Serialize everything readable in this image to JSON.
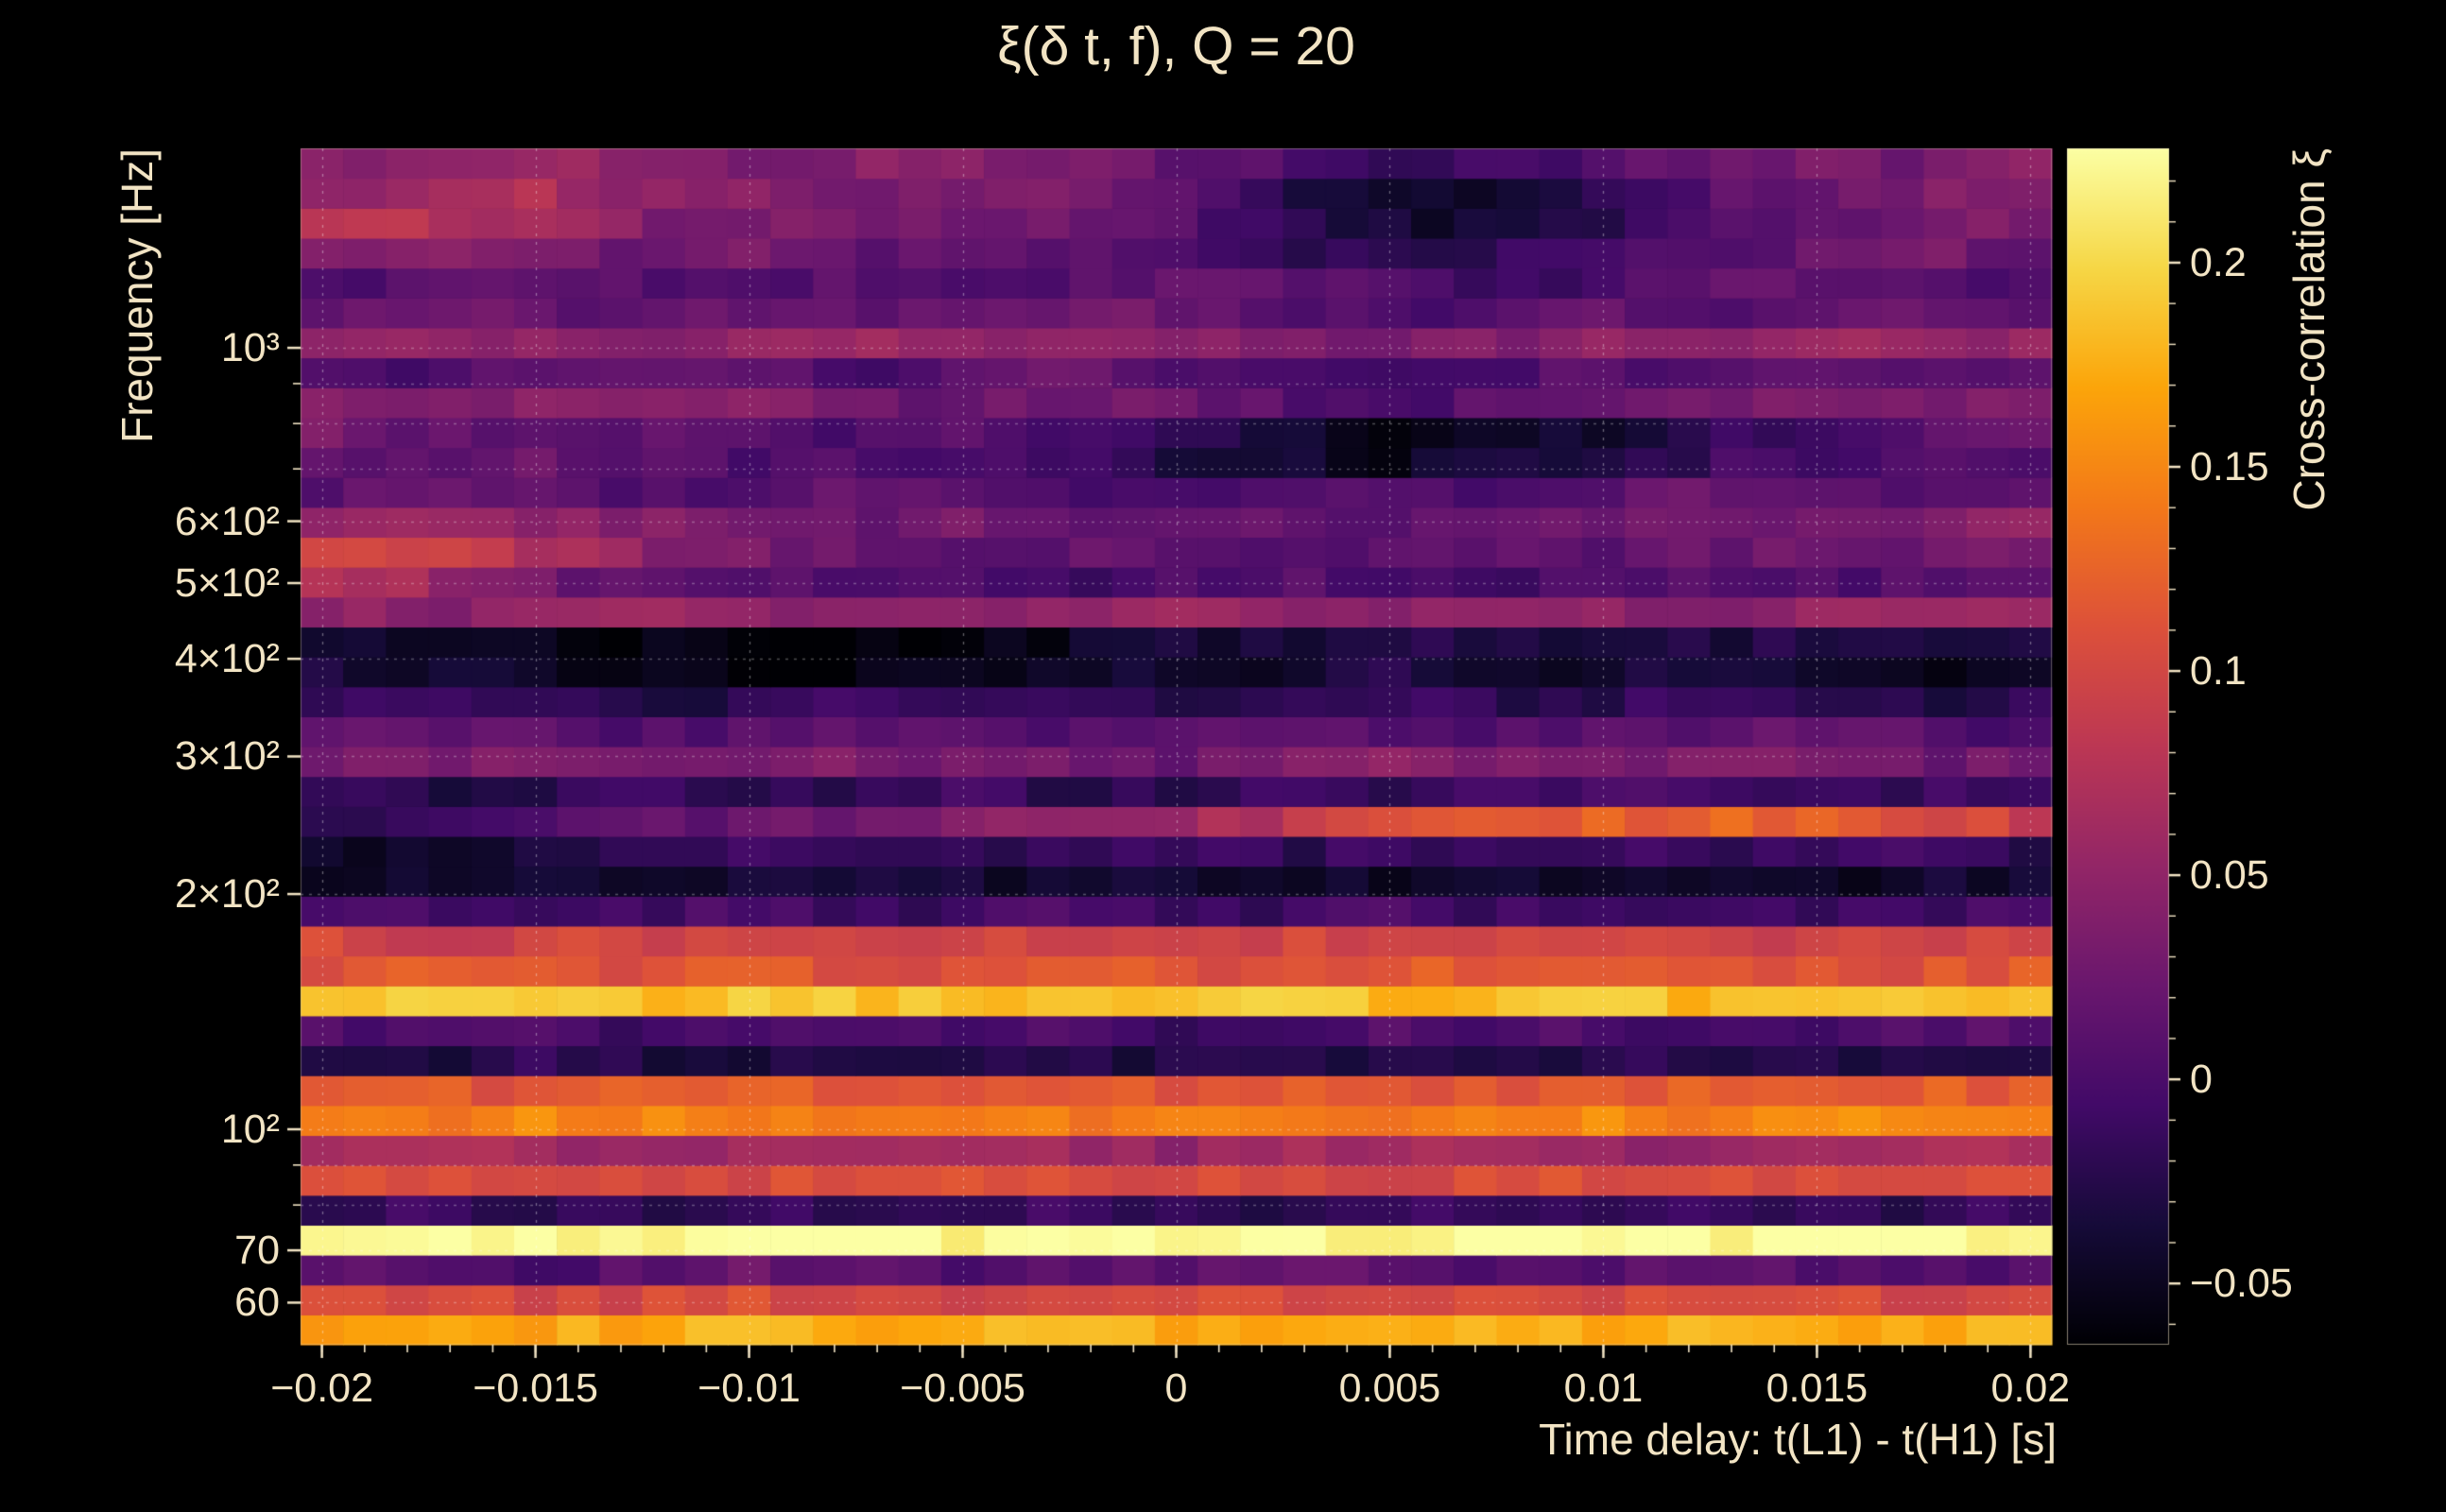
{
  "title": "ξ(δ t, f), Q = 20",
  "colors": {
    "background": "#000000",
    "text": "#f2e4c4",
    "grid": "#ffffff",
    "tick": "#f2e4c4"
  },
  "chart_data": {
    "type": "heatmap",
    "title": "ξ(δ t, f), Q = 20",
    "xlabel": "Time delay: t(L1) - t(H1) [s]",
    "ylabel": "Frequency [Hz]",
    "colorbar_label": "Cross-correlation ξ",
    "x_range": [
      -0.0205,
      0.0205
    ],
    "x_ticks": [
      -0.02,
      -0.015,
      -0.01,
      -0.005,
      0,
      0.005,
      0.01,
      0.015,
      0.02
    ],
    "x_tick_labels": [
      "−0.02",
      "−0.015",
      "−0.01",
      "−0.005",
      "0",
      "0.005",
      "0.01",
      "0.015",
      "0.02"
    ],
    "x_minor_step": 0.001,
    "y_scale": "log",
    "y_range": [
      53,
      1800
    ],
    "y_ticks": [
      60,
      70,
      100,
      200,
      300,
      400,
      500,
      600,
      1000
    ],
    "y_tick_labels": [
      "60",
      "70",
      "10²",
      "2×10²",
      "3×10²",
      "4×10²",
      "5×10²",
      "6×10²",
      "10³"
    ],
    "y_grid_ticks": [
      60,
      70,
      80,
      90,
      100,
      200,
      300,
      400,
      500,
      600,
      700,
      800,
      900,
      1000
    ],
    "z_range": [
      -0.065,
      0.228
    ],
    "z_ticks": [
      -0.05,
      0,
      0.05,
      0.1,
      0.15,
      0.2
    ],
    "z_tick_labels": [
      "−0.05",
      "0",
      "0.05",
      "0.1",
      "0.15",
      "0.2"
    ],
    "z_minor_step": 0.01,
    "colormap": [
      {
        "p": 0.0,
        "c": "#000004"
      },
      {
        "p": 0.1,
        "c": "#160b39"
      },
      {
        "p": 0.2,
        "c": "#420a68"
      },
      {
        "p": 0.3,
        "c": "#6a176e"
      },
      {
        "p": 0.4,
        "c": "#932667"
      },
      {
        "p": 0.5,
        "c": "#bc3754"
      },
      {
        "p": 0.6,
        "c": "#dd513a"
      },
      {
        "p": 0.7,
        "c": "#f37819"
      },
      {
        "p": 0.8,
        "c": "#fca50a"
      },
      {
        "p": 0.9,
        "c": "#f6d746"
      },
      {
        "p": 1.0,
        "c": "#fcffa4"
      }
    ],
    "t": [
      -0.02,
      -0.0175,
      -0.015,
      -0.0125,
      -0.01,
      -0.0075,
      -0.005,
      -0.0025,
      0,
      0.0025,
      0.005,
      0.0075,
      0.01,
      0.0125,
      0.015,
      0.0175,
      0.02
    ],
    "frequencies": [
      53,
      58,
      63,
      70,
      76,
      83,
      91,
      100,
      109,
      120,
      131,
      143,
      157,
      172,
      188,
      206,
      225,
      246,
      270,
      295,
      323,
      354,
      387,
      424,
      464,
      508,
      556,
      608,
      666,
      729,
      798,
      873,
      956,
      1046,
      1145,
      1253,
      1372,
      1502,
      1644,
      1800
    ],
    "values": [
      [
        0.17,
        0.18,
        0.17,
        0.17,
        0.18,
        0.17,
        0.17,
        0.18,
        0.17,
        0.17,
        0.18,
        0.17,
        0.17,
        0.18,
        0.17,
        0.17,
        0.18
      ],
      [
        0.1,
        0.11,
        0.1,
        0.1,
        0.11,
        0.1,
        0.1,
        0.1,
        0.11,
        0.1,
        0.1,
        0.11,
        0.1,
        0.1,
        0.11,
        0.1,
        0.1
      ],
      [
        0.02,
        0.01,
        0.0,
        0.01,
        0.02,
        0.01,
        0.0,
        0.01,
        0.01,
        0.02,
        0.01,
        0.0,
        0.01,
        0.02,
        0.01,
        0.01,
        0.0
      ],
      [
        0.22,
        0.23,
        0.23,
        0.22,
        0.23,
        0.23,
        0.22,
        0.23,
        0.23,
        0.23,
        0.22,
        0.23,
        0.23,
        0.22,
        0.23,
        0.23,
        0.22
      ],
      [
        -0.02,
        -0.01,
        -0.02,
        -0.02,
        -0.01,
        -0.02,
        -0.02,
        -0.01,
        -0.02,
        -0.02,
        -0.01,
        -0.02,
        -0.02,
        -0.01,
        -0.02,
        -0.02,
        -0.01
      ],
      [
        0.11,
        0.1,
        0.11,
        0.11,
        0.1,
        0.11,
        0.11,
        0.1,
        0.11,
        0.11,
        0.1,
        0.11,
        0.11,
        0.1,
        0.11,
        0.11,
        0.1
      ],
      [
        0.06,
        0.07,
        0.06,
        0.05,
        0.06,
        0.07,
        0.06,
        0.06,
        0.05,
        0.06,
        0.07,
        0.06,
        0.06,
        0.05,
        0.06,
        0.06,
        0.07
      ],
      [
        0.15,
        0.14,
        0.15,
        0.15,
        0.14,
        0.15,
        0.15,
        0.14,
        0.15,
        0.15,
        0.14,
        0.15,
        0.15,
        0.14,
        0.15,
        0.15,
        0.14
      ],
      [
        0.12,
        0.12,
        0.11,
        0.12,
        0.12,
        0.11,
        0.12,
        0.12,
        0.11,
        0.12,
        0.12,
        0.11,
        0.12,
        0.12,
        0.11,
        0.12,
        0.12
      ],
      [
        -0.03,
        -0.03,
        -0.02,
        -0.03,
        -0.03,
        -0.02,
        -0.03,
        -0.03,
        -0.03,
        -0.02,
        -0.03,
        -0.03,
        -0.02,
        -0.03,
        -0.03,
        -0.02,
        -0.03
      ],
      [
        0.0,
        0.01,
        0.0,
        -0.01,
        0.0,
        0.01,
        0.0,
        0.0,
        -0.01,
        0.0,
        0.01,
        0.0,
        0.0,
        -0.01,
        0.0,
        0.0,
        0.01
      ],
      [
        0.18,
        0.19,
        0.19,
        0.18,
        0.19,
        0.19,
        0.18,
        0.19,
        0.19,
        0.19,
        0.18,
        0.19,
        0.19,
        0.18,
        0.19,
        0.19,
        0.18
      ],
      [
        0.11,
        0.12,
        0.11,
        0.11,
        0.12,
        0.11,
        0.11,
        0.12,
        0.11,
        0.11,
        0.12,
        0.11,
        0.11,
        0.12,
        0.11,
        0.11,
        0.12
      ],
      [
        0.1,
        0.09,
        0.1,
        0.1,
        0.09,
        0.1,
        0.1,
        0.09,
        0.1,
        0.1,
        0.09,
        0.1,
        0.1,
        0.09,
        0.1,
        0.1,
        0.09
      ],
      [
        -0.01,
        0.0,
        -0.01,
        -0.01,
        0.0,
        -0.01,
        -0.01,
        0.0,
        -0.01,
        -0.01,
        0.0,
        -0.01,
        -0.01,
        0.0,
        -0.01,
        -0.01,
        0.0
      ],
      [
        -0.05,
        -0.04,
        -0.04,
        -0.05,
        -0.04,
        -0.04,
        -0.04,
        -0.05,
        -0.04,
        -0.04,
        -0.05,
        -0.04,
        -0.04,
        -0.04,
        -0.05,
        -0.04,
        -0.04
      ],
      [
        -0.05,
        -0.05,
        -0.03,
        -0.02,
        -0.01,
        -0.01,
        -0.02,
        -0.01,
        -0.01,
        -0.02,
        -0.01,
        -0.01,
        -0.01,
        -0.02,
        -0.01,
        -0.01,
        -0.02
      ],
      [
        -0.02,
        -0.01,
        0.0,
        0.01,
        0.02,
        0.03,
        0.04,
        0.05,
        0.06,
        0.08,
        0.1,
        0.11,
        0.12,
        0.13,
        0.12,
        0.11,
        0.09
      ],
      [
        -0.02,
        -0.03,
        -0.02,
        -0.01,
        -0.02,
        -0.02,
        -0.01,
        -0.02,
        -0.02,
        -0.01,
        -0.02,
        -0.01,
        0.0,
        -0.01,
        -0.02,
        -0.01,
        -0.02
      ],
      [
        0.03,
        0.04,
        0.03,
        0.02,
        0.03,
        0.04,
        0.03,
        0.03,
        0.02,
        0.04,
        0.05,
        0.04,
        0.03,
        0.04,
        0.03,
        0.02,
        0.03
      ],
      [
        0.01,
        0.02,
        0.01,
        0.0,
        0.01,
        0.02,
        0.01,
        0.0,
        0.01,
        0.02,
        0.01,
        0.0,
        0.01,
        0.01,
        0.02,
        0.01,
        0.0
      ],
      [
        -0.02,
        -0.01,
        -0.02,
        -0.03,
        -0.02,
        -0.01,
        -0.02,
        -0.02,
        -0.03,
        -0.02,
        -0.01,
        -0.02,
        -0.02,
        -0.01,
        -0.02,
        -0.03,
        -0.02
      ],
      [
        -0.03,
        -0.04,
        -0.05,
        -0.05,
        -0.06,
        -0.06,
        -0.05,
        -0.05,
        -0.04,
        -0.04,
        -0.03,
        -0.04,
        -0.04,
        -0.03,
        -0.04,
        -0.05,
        -0.04
      ],
      [
        -0.04,
        -0.04,
        -0.05,
        -0.06,
        -0.06,
        -0.06,
        -0.06,
        -0.05,
        -0.04,
        -0.04,
        -0.03,
        -0.03,
        -0.04,
        -0.03,
        -0.03,
        -0.04,
        -0.03
      ],
      [
        0.05,
        0.04,
        0.05,
        0.06,
        0.05,
        0.04,
        0.05,
        0.05,
        0.06,
        0.05,
        0.04,
        0.05,
        0.05,
        0.04,
        0.05,
        0.06,
        0.05
      ],
      [
        0.08,
        0.06,
        0.03,
        0.01,
        0.0,
        0.01,
        0.0,
        -0.01,
        0.0,
        0.01,
        0.0,
        -0.01,
        0.0,
        0.01,
        0.0,
        0.01,
        0.02
      ],
      [
        0.1,
        0.09,
        0.07,
        0.05,
        0.03,
        0.02,
        0.01,
        0.02,
        0.01,
        0.0,
        0.01,
        0.02,
        0.01,
        0.02,
        0.03,
        0.02,
        0.03
      ],
      [
        0.06,
        0.07,
        0.05,
        0.04,
        0.03,
        0.02,
        0.03,
        0.02,
        0.01,
        0.02,
        0.01,
        0.02,
        0.03,
        0.02,
        0.03,
        0.04,
        0.05
      ],
      [
        0.01,
        0.02,
        0.01,
        0.0,
        0.01,
        0.02,
        0.01,
        0.0,
        -0.01,
        0.0,
        0.01,
        0.0,
        0.01,
        0.02,
        0.01,
        0.0,
        0.01
      ],
      [
        0.02,
        0.01,
        0.02,
        0.01,
        0.0,
        0.01,
        0.0,
        -0.01,
        -0.03,
        -0.04,
        -0.05,
        -0.04,
        -0.03,
        -0.01,
        0.0,
        0.01,
        0.0
      ],
      [
        0.03,
        0.02,
        0.01,
        0.02,
        0.01,
        0.0,
        0.01,
        0.0,
        -0.02,
        -0.04,
        -0.05,
        -0.05,
        -0.04,
        -0.02,
        0.0,
        0.01,
        0.02
      ],
      [
        0.04,
        0.03,
        0.04,
        0.05,
        0.04,
        0.03,
        0.02,
        0.03,
        0.02,
        0.01,
        0.0,
        0.01,
        0.02,
        0.03,
        0.04,
        0.03,
        0.04
      ],
      [
        0.01,
        0.0,
        0.01,
        0.02,
        0.01,
        0.0,
        0.01,
        0.02,
        0.01,
        0.0,
        -0.01,
        0.0,
        0.01,
        0.0,
        0.01,
        0.02,
        0.01
      ],
      [
        0.05,
        0.06,
        0.05,
        0.04,
        0.05,
        0.06,
        0.05,
        0.04,
        0.05,
        0.04,
        0.03,
        0.04,
        0.05,
        0.04,
        0.05,
        0.06,
        0.05
      ],
      [
        0.02,
        0.03,
        0.02,
        0.01,
        0.02,
        0.01,
        0.02,
        0.03,
        0.02,
        0.01,
        0.0,
        0.01,
        0.02,
        0.01,
        0.02,
        0.03,
        0.02
      ],
      [
        0.0,
        0.01,
        0.02,
        0.01,
        0.0,
        0.01,
        0.0,
        0.01,
        0.02,
        0.01,
        0.0,
        -0.01,
        0.0,
        0.01,
        0.02,
        0.01,
        0.0
      ],
      [
        0.03,
        0.04,
        0.03,
        0.02,
        0.03,
        0.02,
        0.01,
        0.02,
        0.01,
        -0.01,
        -0.03,
        -0.02,
        0.0,
        0.01,
        0.02,
        0.03,
        0.02
      ],
      [
        0.07,
        0.08,
        0.06,
        0.04,
        0.03,
        0.04,
        0.03,
        0.02,
        0.01,
        -0.02,
        -0.04,
        -0.04,
        -0.02,
        0.0,
        0.02,
        0.03,
        0.04
      ],
      [
        0.05,
        0.06,
        0.07,
        0.05,
        0.04,
        0.03,
        0.04,
        0.03,
        0.02,
        -0.03,
        -0.05,
        -0.04,
        -0.01,
        0.01,
        0.02,
        0.04,
        0.03
      ],
      [
        0.04,
        0.05,
        0.06,
        0.04,
        0.03,
        0.04,
        0.05,
        0.03,
        0.02,
        0.0,
        -0.02,
        -0.01,
        0.01,
        0.02,
        0.03,
        0.02,
        0.04
      ]
    ]
  }
}
